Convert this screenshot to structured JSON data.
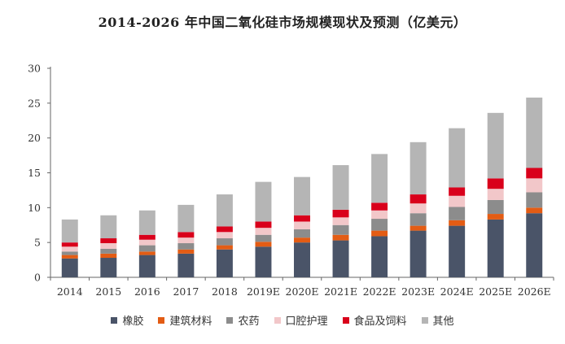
{
  "chart_data": {
    "type": "bar",
    "stacked": true,
    "title": "2014-2026 年中国二氧化硅市场规模现状及预测（亿美元）",
    "xlabel": "",
    "ylabel": "",
    "ylim": [
      0,
      30
    ],
    "yticks": [
      0,
      5,
      10,
      15,
      20,
      25,
      30
    ],
    "grid": false,
    "legend_position": "bottom",
    "categories": [
      "2014",
      "2015",
      "2016",
      "2017",
      "2018",
      "2019E",
      "2020E",
      "2021E",
      "2022E",
      "2023E",
      "2024E",
      "2025E",
      "2026E"
    ],
    "series": [
      {
        "name": "橡胶",
        "color": "#4a5468",
        "values": [
          2.7,
          2.8,
          3.2,
          3.4,
          4.0,
          4.4,
          5.0,
          5.3,
          5.9,
          6.7,
          7.4,
          8.3,
          9.2
        ]
      },
      {
        "name": "建筑材料",
        "color": "#e35c14",
        "values": [
          0.5,
          0.6,
          0.5,
          0.6,
          0.6,
          0.7,
          0.7,
          0.8,
          0.8,
          0.7,
          0.8,
          0.8,
          0.8
        ]
      },
      {
        "name": "农药",
        "color": "#8c8c8c",
        "values": [
          0.5,
          0.7,
          0.9,
          0.9,
          1.0,
          1.0,
          1.2,
          1.4,
          1.7,
          1.8,
          1.9,
          2.0,
          2.2
        ]
      },
      {
        "name": "口腔护理",
        "color": "#f2c7c9",
        "values": [
          0.7,
          0.8,
          0.8,
          0.8,
          0.9,
          1.0,
          1.1,
          1.1,
          1.2,
          1.4,
          1.6,
          1.6,
          2.0
        ]
      },
      {
        "name": "食品及饲料",
        "color": "#d9001b",
        "values": [
          0.6,
          0.7,
          0.7,
          0.8,
          0.8,
          0.9,
          0.9,
          1.1,
          1.1,
          1.3,
          1.2,
          1.5,
          1.5
        ]
      },
      {
        "name": "其他",
        "color": "#b5b5b5",
        "values": [
          3.3,
          3.3,
          3.5,
          3.9,
          4.6,
          5.7,
          5.5,
          6.4,
          7.0,
          7.5,
          8.5,
          9.4,
          10.1
        ]
      }
    ]
  }
}
